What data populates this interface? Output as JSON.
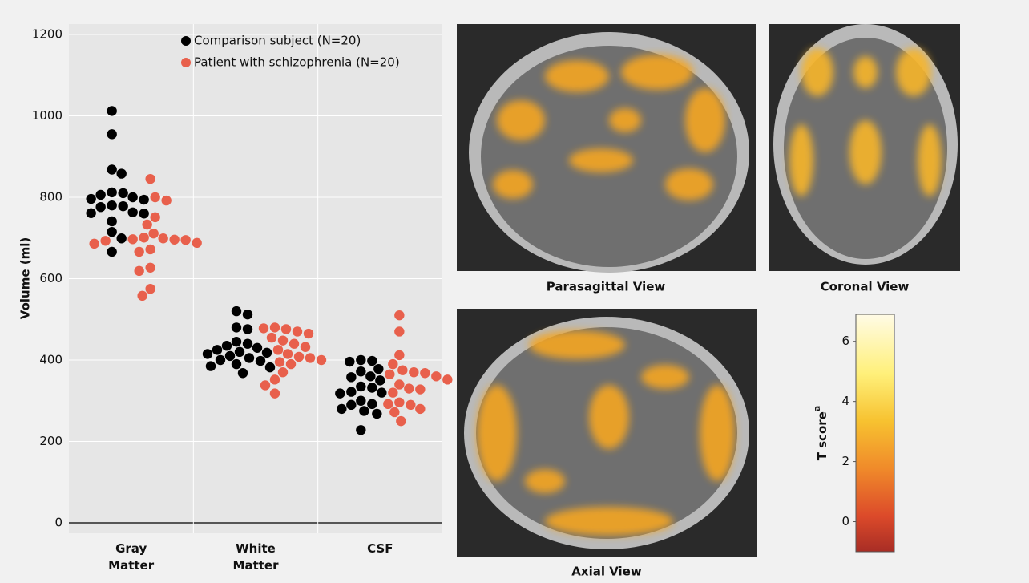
{
  "chart_data": {
    "type": "swarm",
    "ylabel": "Volume (ml)",
    "categories": [
      "Gray Matter",
      "White Matter",
      "CSF"
    ],
    "ylim": [
      0,
      1200
    ],
    "yticks": [
      0,
      200,
      400,
      600,
      800,
      1000,
      1200
    ],
    "grid": true,
    "legend": "top-right",
    "series": [
      {
        "name": "Comparison subject (N=20)",
        "color": "#000000",
        "values": [
          [
            1012,
            955,
            868,
            858,
            812,
            810,
            806,
            800,
            796,
            794,
            780,
            778,
            776,
            763,
            761,
            760,
            741,
            715,
            699,
            666
          ],
          [
            520,
            512,
            480,
            476,
            445,
            440,
            435,
            430,
            425,
            420,
            418,
            415,
            410,
            405,
            400,
            398,
            390,
            385,
            382,
            368
          ],
          [
            400,
            398,
            396,
            378,
            372,
            360,
            358,
            350,
            335,
            332,
            322,
            320,
            318,
            300,
            292,
            290,
            280,
            275,
            268,
            228
          ]
        ]
      },
      {
        "name": "Patient with schizophrenia (N=20)",
        "color": "#e8604c",
        "values": [
          [
            845,
            800,
            792,
            751,
            733,
            711,
            701,
            699,
            697,
            696,
            695,
            693,
            688,
            686,
            672,
            666,
            627,
            619,
            575,
            558
          ],
          [
            480,
            478,
            476,
            470,
            465,
            455,
            448,
            440,
            432,
            425,
            415,
            408,
            405,
            400,
            395,
            390,
            370,
            352,
            338,
            318
          ],
          [
            510,
            470,
            412,
            390,
            375,
            370,
            368,
            365,
            360,
            352,
            340,
            330,
            328,
            320,
            296,
            292,
            290,
            280,
            272,
            250
          ]
        ]
      }
    ]
  },
  "images": {
    "parasagittal": "Parasagittal View",
    "coronal": "Coronal View",
    "axial": "Axial View"
  },
  "colorbar": {
    "label": "T score",
    "label_superscript": "a",
    "ylim": [
      -1,
      6.9
    ],
    "yticks": [
      0,
      2,
      4,
      6
    ]
  }
}
